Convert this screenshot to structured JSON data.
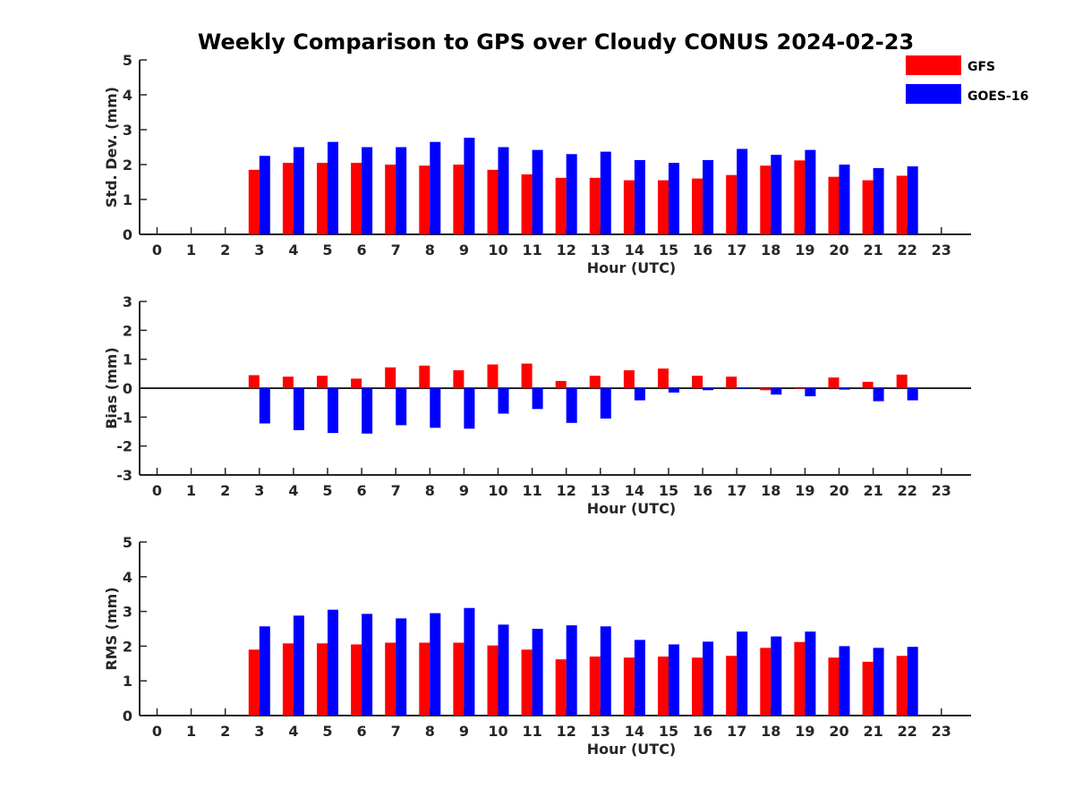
{
  "chart_data": {
    "title": "Weekly Comparison to GPS over Cloudy CONUS 2024-02-23",
    "legend": {
      "placement": "top-right",
      "entries": [
        {
          "name": "GFS",
          "color": "#ff0000"
        },
        {
          "name": "GOES-16",
          "color": "#0000ff"
        }
      ]
    },
    "categories": [
      "0",
      "1",
      "2",
      "3",
      "4",
      "5",
      "6",
      "7",
      "8",
      "9",
      "10",
      "11",
      "12",
      "13",
      "14",
      "15",
      "16",
      "17",
      "18",
      "19",
      "20",
      "21",
      "22",
      "23"
    ],
    "panels": [
      {
        "type": "bar",
        "xlabel": "Hour (UTC)",
        "ylabel": "Std. Dev. (mm)",
        "ylim": [
          0,
          5
        ],
        "yticks": [
          "0",
          "1",
          "2",
          "3",
          "4",
          "5"
        ],
        "series": [
          {
            "name": "GFS",
            "color": "#ff0000",
            "values": [
              null,
              null,
              null,
              1.85,
              2.05,
              2.05,
              2.05,
              2.0,
              1.97,
              2.0,
              1.85,
              1.72,
              1.62,
              1.62,
              1.55,
              1.55,
              1.6,
              1.7,
              1.97,
              2.12,
              1.65,
              1.55,
              1.68,
              null
            ]
          },
          {
            "name": "GOES-16",
            "color": "#0000ff",
            "values": [
              null,
              null,
              null,
              2.25,
              2.5,
              2.65,
              2.5,
              2.5,
              2.65,
              2.77,
              2.5,
              2.42,
              2.3,
              2.37,
              2.13,
              2.05,
              2.13,
              2.45,
              2.28,
              2.42,
              2.0,
              1.9,
              1.95,
              null
            ]
          }
        ]
      },
      {
        "type": "bar",
        "xlabel": "Hour (UTC)",
        "ylabel": "Bias (mm)",
        "ylim": [
          -3,
          3
        ],
        "yticks": [
          "-3",
          "-2",
          "-1",
          "0",
          "1",
          "2",
          "3"
        ],
        "series": [
          {
            "name": "GFS",
            "color": "#ff0000",
            "values": [
              null,
              null,
              null,
              0.45,
              0.4,
              0.43,
              0.33,
              0.72,
              0.78,
              0.62,
              0.82,
              0.85,
              0.25,
              0.43,
              0.62,
              0.68,
              0.43,
              0.4,
              -0.07,
              0.0,
              0.37,
              0.22,
              0.47,
              null
            ]
          },
          {
            "name": "GOES-16",
            "color": "#0000ff",
            "values": [
              null,
              null,
              null,
              -1.22,
              -1.45,
              -1.55,
              -1.57,
              -1.28,
              -1.37,
              -1.4,
              -0.88,
              -0.72,
              -1.2,
              -1.05,
              -0.42,
              -0.15,
              -0.07,
              -0.02,
              -0.22,
              -0.28,
              -0.05,
              -0.45,
              -0.42,
              null
            ]
          }
        ]
      },
      {
        "type": "bar",
        "xlabel": "Hour (UTC)",
        "ylabel": "RMS (mm)",
        "ylim": [
          0,
          5
        ],
        "yticks": [
          "0",
          "1",
          "2",
          "3",
          "4",
          "5"
        ],
        "series": [
          {
            "name": "GFS",
            "color": "#ff0000",
            "values": [
              null,
              null,
              null,
              1.9,
              2.08,
              2.08,
              2.05,
              2.1,
              2.1,
              2.1,
              2.02,
              1.9,
              1.62,
              1.7,
              1.67,
              1.7,
              1.67,
              1.72,
              1.95,
              2.12,
              1.67,
              1.55,
              1.72,
              null
            ]
          },
          {
            "name": "GOES-16",
            "color": "#0000ff",
            "values": [
              null,
              null,
              null,
              2.57,
              2.88,
              3.05,
              2.93,
              2.8,
              2.95,
              3.1,
              2.62,
              2.5,
              2.6,
              2.57,
              2.18,
              2.05,
              2.13,
              2.42,
              2.28,
              2.42,
              2.0,
              1.95,
              1.98,
              null
            ]
          }
        ]
      }
    ]
  }
}
